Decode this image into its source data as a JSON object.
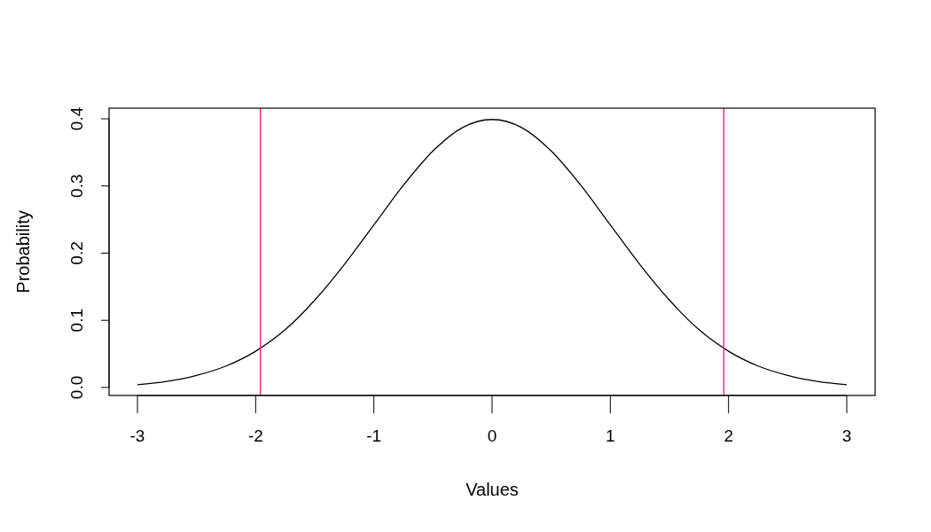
{
  "chart_data": {
    "type": "line",
    "xlabel": "Values",
    "ylabel": "Probability",
    "x": [
      -3,
      -2.75,
      -2.5,
      -2.25,
      -2,
      -1.75,
      -1.5,
      -1.25,
      -1,
      -0.75,
      -0.5,
      -0.25,
      0,
      0.25,
      0.5,
      0.75,
      1,
      1.25,
      1.5,
      1.75,
      2,
      2.25,
      2.5,
      2.75,
      3
    ],
    "series": [
      {
        "color": "#000000",
        "values": [
          0.004,
          0.009,
          0.018,
          0.032,
          0.054,
          0.086,
          0.13,
          0.183,
          0.242,
          0.301,
          0.352,
          0.387,
          0.399,
          0.387,
          0.352,
          0.301,
          0.242,
          0.183,
          0.13,
          0.086,
          0.054,
          0.032,
          0.018,
          0.009,
          0.004
        ]
      }
    ],
    "xlim": [
      -3.24,
      3.24
    ],
    "ylim": [
      -0.0119,
      0.4158
    ],
    "xticks": [
      -3,
      -2,
      -1,
      0,
      1,
      2,
      3
    ],
    "yticks": [
      {
        "value": 0,
        "label": "0.0"
      },
      {
        "value": 0.1,
        "label": "0.1"
      },
      {
        "value": 0.2,
        "label": "0.2"
      },
      {
        "value": 0.3,
        "label": "0.3"
      },
      {
        "value": 0.4,
        "label": "0.4"
      }
    ],
    "ref_lines": [
      {
        "axis": "x",
        "value": -1.96,
        "color": "#f0289a"
      },
      {
        "axis": "x",
        "value": 1.96,
        "color": "#f0289a"
      }
    ],
    "grid": false,
    "marker": "none",
    "line_style": "solid"
  }
}
